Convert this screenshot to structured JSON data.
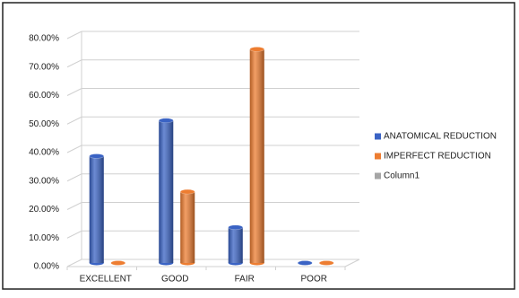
{
  "chart_data": {
    "type": "bar",
    "categories": [
      "EXCELLENT",
      "GOOD",
      "FAIR",
      "POOR"
    ],
    "series": [
      {
        "name": "ANATOMICAL REDUCTION",
        "color": "#3a63c4",
        "values": [
          37.5,
          50,
          12.5,
          0
        ]
      },
      {
        "name": "IMPERFECT REDUCTION",
        "color": "#ed7d31",
        "values": [
          0,
          25,
          75,
          0
        ]
      },
      {
        "name": "Column1",
        "color": "#a5a5a5",
        "values": [
          null,
          null,
          null,
          null
        ]
      }
    ],
    "ylim": [
      0,
      80
    ],
    "yticks": [
      {
        "value": 0,
        "label": "0.00%"
      },
      {
        "value": 10,
        "label": "10.00%"
      },
      {
        "value": 20,
        "label": "20.00%"
      },
      {
        "value": 30,
        "label": "30.00%"
      },
      {
        "value": 40,
        "label": "40.00%"
      },
      {
        "value": 50,
        "label": "50.00%"
      },
      {
        "value": 60,
        "label": "60.00%"
      },
      {
        "value": 70,
        "label": "70.00%"
      },
      {
        "value": 80,
        "label": "80.00%"
      }
    ],
    "grid": true,
    "legend": "right"
  }
}
